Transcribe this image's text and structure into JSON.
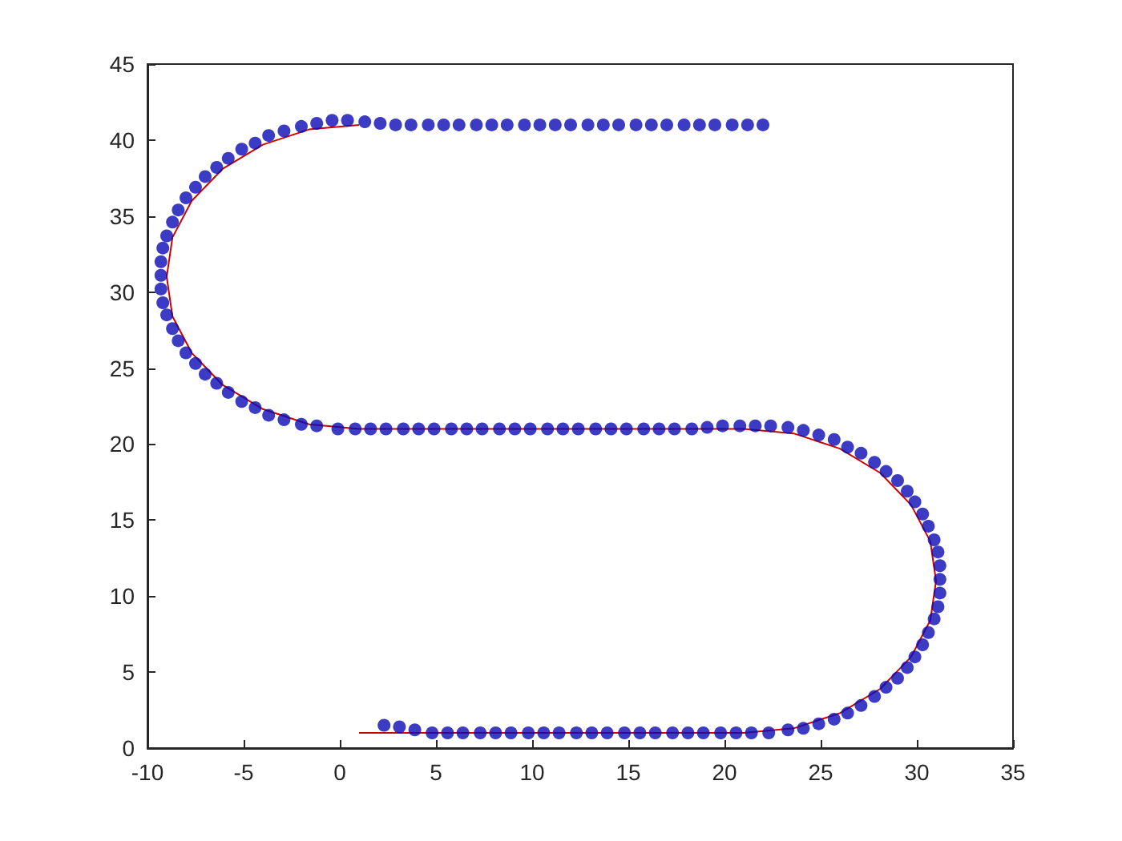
{
  "chart_data": {
    "type": "scatter",
    "xlim": [
      -10,
      35
    ],
    "xticks": [
      -10,
      -5,
      0,
      5,
      10,
      15,
      20,
      25,
      30,
      35
    ],
    "ylim": [
      0,
      45
    ],
    "yticks": [
      0,
      5,
      10,
      15,
      20,
      25,
      30,
      35,
      40,
      45
    ],
    "grid": false,
    "series": [
      {
        "type": "line",
        "color": "#cc0000",
        "marker": "none",
        "line_style": "solid",
        "x": [
          1,
          21,
          23.6,
          26,
          28.1,
          29.7,
          30.7,
          31,
          30.7,
          29.7,
          28.1,
          26,
          23.6,
          21,
          1,
          -1.6,
          -4,
          -6.1,
          -7.7,
          -8.7,
          -9,
          -8.7,
          -7.7,
          -6.1,
          -4,
          -1.6,
          1
        ],
        "values": [
          1,
          1,
          1.3,
          2.3,
          3.9,
          6,
          8.4,
          11,
          13.6,
          16,
          18.1,
          19.7,
          20.7,
          21,
          21,
          21.3,
          22.3,
          23.9,
          26,
          28.4,
          31,
          33.6,
          36,
          38.1,
          39.7,
          40.7,
          41
        ]
      },
      {
        "color": "#0a0ab4",
        "marker": "circle",
        "x": [
          2.3,
          3.1,
          3.9,
          4.8,
          5.6,
          6.4,
          7.3,
          8.1,
          8.9,
          9.8,
          10.6,
          11.4,
          12.3,
          13.1,
          13.9,
          14.8,
          15.6,
          16.4,
          17.3,
          18.1,
          18.9,
          19.8,
          20.6,
          21.4,
          22.3,
          23.3,
          24.1,
          24.9,
          25.7,
          26.4,
          27.1,
          27.8,
          28.4,
          29.0,
          29.5,
          29.9,
          30.3,
          30.6,
          30.9,
          31.1,
          31.2,
          31.2,
          31.2,
          31.1,
          30.9,
          30.6,
          30.3,
          29.9,
          29.5,
          29.0,
          28.4,
          27.8,
          27.1,
          26.4,
          25.7,
          24.9,
          24.1,
          23.3,
          22.4,
          21.6,
          20.8,
          19.9,
          19.1,
          18.3,
          17.4,
          16.6,
          15.8,
          14.9,
          14.1,
          13.3,
          12.4,
          11.6,
          10.8,
          9.9,
          9.1,
          8.3,
          7.4,
          6.6,
          5.8,
          4.9,
          4.1,
          3.3,
          2.4,
          1.6,
          0.8,
          -0.1,
          -1.2,
          -2.0,
          -2.9,
          -3.7,
          -4.4,
          -5.1,
          -5.8,
          -6.4,
          -7.0,
          -7.5,
          -8.0,
          -8.4,
          -8.7,
          -9.0,
          -9.2,
          -9.3,
          -9.3,
          -9.3,
          -9.2,
          -9.0,
          -8.7,
          -8.4,
          -8.0,
          -7.5,
          -7.0,
          -6.4,
          -5.8,
          -5.1,
          -4.4,
          -3.7,
          -2.9,
          -2.0,
          -1.2,
          -0.4,
          0.4,
          1.3,
          2.1,
          2.9,
          3.7,
          4.6,
          5.4,
          6.2,
          7.1,
          7.9,
          8.7,
          9.6,
          10.4,
          11.2,
          12.0,
          12.9,
          13.7,
          14.5,
          15.4,
          16.2,
          17.0,
          17.9,
          18.7,
          19.5,
          20.4,
          21.2,
          22.0
        ],
        "values": [
          1.5,
          1.4,
          1.2,
          1,
          1,
          1,
          1,
          1,
          1,
          1,
          1,
          1,
          1,
          1,
          1,
          1,
          1,
          1,
          1,
          1,
          1,
          1,
          1,
          1,
          1,
          1.2,
          1.3,
          1.6,
          1.9,
          2.3,
          2.8,
          3.4,
          4.0,
          4.6,
          5.3,
          6.0,
          6.8,
          7.6,
          8.5,
          9.3,
          10.2,
          11.1,
          12.0,
          12.9,
          13.7,
          14.6,
          15.4,
          16.2,
          16.9,
          17.6,
          18.2,
          18.8,
          19.4,
          19.8,
          20.3,
          20.6,
          20.9,
          21.1,
          21.2,
          21.2,
          21.2,
          21.2,
          21.1,
          21,
          21,
          21,
          21,
          21,
          21,
          21,
          21,
          21,
          21,
          21,
          21,
          21,
          21,
          21,
          21,
          21,
          21,
          21,
          21,
          21,
          21,
          21,
          21.2,
          21.3,
          21.6,
          21.9,
          22.4,
          22.8,
          23.4,
          24.0,
          24.6,
          25.3,
          26.0,
          26.8,
          27.6,
          28.5,
          29.3,
          30.2,
          31.1,
          32.0,
          32.9,
          33.7,
          34.6,
          35.4,
          36.2,
          36.9,
          37.6,
          38.2,
          38.8,
          39.4,
          39.8,
          40.3,
          40.6,
          40.9,
          41.1,
          41.3,
          41.3,
          41.2,
          41.1,
          41,
          41,
          41,
          41,
          41,
          41,
          41,
          41,
          41,
          41,
          41,
          41,
          41,
          41,
          41,
          41,
          41,
          41,
          41,
          41,
          41,
          41,
          41,
          41
        ]
      }
    ]
  }
}
